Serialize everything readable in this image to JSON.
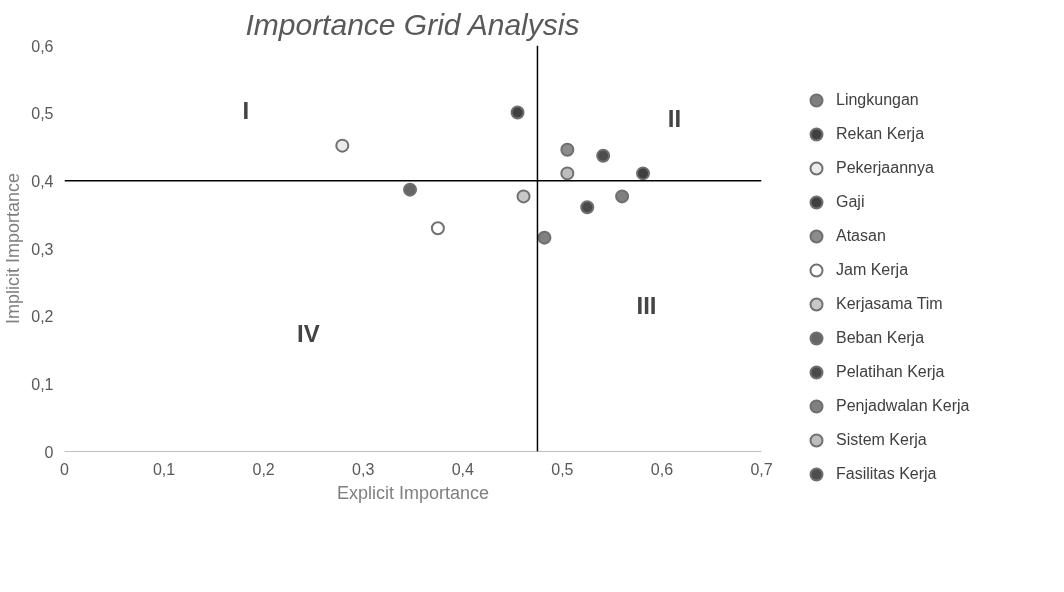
{
  "chart_data": {
    "type": "scatter",
    "title": "Importance Grid Analysis",
    "xlabel": "Explicit Importance",
    "ylabel": "Implicit Importance",
    "xlim": [
      0,
      0.7
    ],
    "ylim": [
      0,
      0.6
    ],
    "xticks": [
      0,
      {
        "value": 0.1,
        "label": "0,1"
      },
      {
        "value": 0.2,
        "label": "0,2"
      },
      {
        "value": 0.3,
        "label": "0,3"
      },
      {
        "value": 0.4,
        "label": "0,4"
      },
      {
        "value": 0.5,
        "label": "0,5"
      },
      {
        "value": 0.6,
        "label": "0,6"
      },
      {
        "value": 0.7,
        "label": "0,7"
      }
    ],
    "yticks": [
      0,
      {
        "value": 0.1,
        "label": "0,1"
      },
      {
        "value": 0.2,
        "label": "0,2"
      },
      {
        "value": 0.3,
        "label": "0,3"
      },
      {
        "value": 0.4,
        "label": "0,4"
      },
      {
        "value": 0.5,
        "label": "0,5"
      },
      {
        "value": 0.6,
        "label": "0,6"
      }
    ],
    "grid": false,
    "legend": "right",
    "marker": "circle",
    "ref_lines": [
      {
        "axis": "x",
        "value": 0.475,
        "color": "#000000"
      },
      {
        "axis": "y",
        "value": 0.4,
        "color": "#000000"
      }
    ],
    "annotations": [
      "I",
      "II",
      "III",
      "IV"
    ],
    "series": [
      {
        "name": "Lingkungan",
        "color": "#7f7f7f",
        "x": [
          0.56
        ],
        "values": [
          0.377
        ]
      },
      {
        "name": "Rekan Kerja",
        "color": "#404040",
        "x": [
          0.455
        ],
        "values": [
          0.501
        ]
      },
      {
        "name": "Pekerjaannya",
        "color": "#ebebeb",
        "x": [
          0.279
        ],
        "values": [
          0.452
        ]
      },
      {
        "name": "Gaji",
        "color": "#404040",
        "x": [
          0.581
        ],
        "values": [
          0.411
        ]
      },
      {
        "name": "Atasan",
        "color": "#8c8c8c",
        "x": [
          0.505
        ],
        "values": [
          0.446
        ]
      },
      {
        "name": "Jam Kerja",
        "color": "#ffffff",
        "x": [
          0.375
        ],
        "values": [
          0.33
        ]
      },
      {
        "name": "Kerjasama Tim",
        "color": "#c8c8c8",
        "x": [
          0.461
        ],
        "values": [
          0.377
        ]
      },
      {
        "name": "Beban Kerja",
        "color": "#666666",
        "x": [
          0.347
        ],
        "values": [
          0.387
        ]
      },
      {
        "name": "Pelatihan Kerja",
        "color": "#4a4a4a",
        "x": [
          0.525
        ],
        "values": [
          0.361
        ]
      },
      {
        "name": "Penjadwalan Kerja",
        "color": "#808080",
        "x": [
          0.482
        ],
        "values": [
          0.316
        ]
      },
      {
        "name": "Sistem Kerja",
        "color": "#bdbdbd",
        "x": [
          0.505
        ],
        "values": [
          0.411
        ]
      },
      {
        "name": "Fasilitas Kerja",
        "color": "#4d4d4d",
        "x": [
          0.541
        ],
        "values": [
          0.437
        ]
      }
    ]
  }
}
